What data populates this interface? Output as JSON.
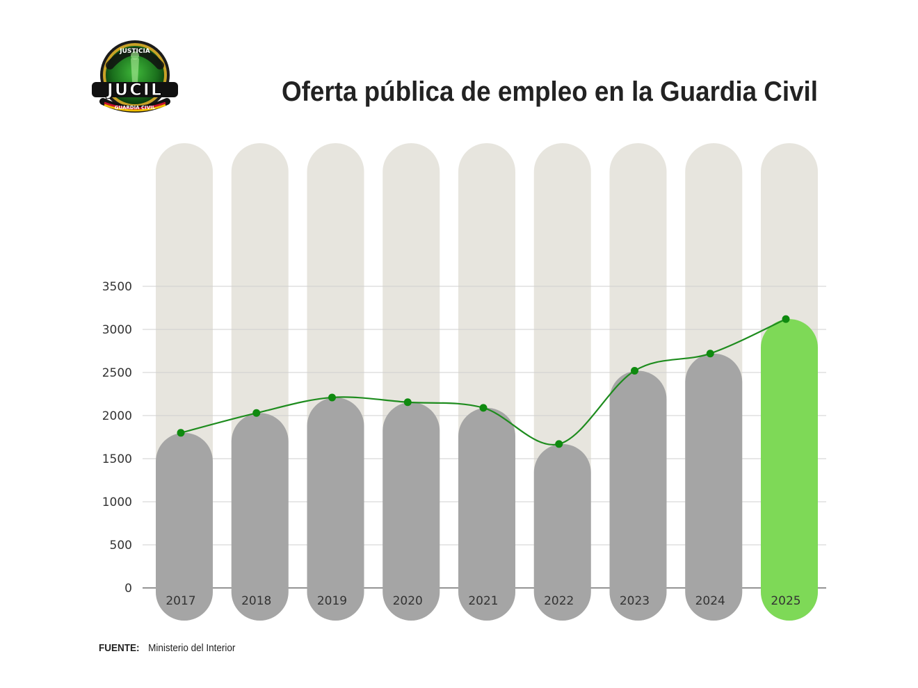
{
  "header": {
    "logo": {
      "top_text": "JUSTICIA",
      "main_text": "JUCIL",
      "bottom_text": "GUARDIA CIVIL"
    },
    "title": "Oferta pública de empleo en la Guardia Civil"
  },
  "footer": {
    "source_label": "FUENTE:",
    "source_value": "Ministerio del Interior"
  },
  "colors": {
    "background_pill": "#e7e5de",
    "bar": "#a5a5a5",
    "highlight_bar": "#7ed957",
    "line": "#1e8c1e",
    "point": "#0f8a0f",
    "grid": "#cfcfcf"
  },
  "chart_data": {
    "type": "bar",
    "title": "Oferta pública de empleo en la Guardia Civil",
    "xlabel": "",
    "ylabel": "",
    "categories": [
      "2017",
      "2018",
      "2019",
      "2020",
      "2021",
      "2022",
      "2023",
      "2024",
      "2025"
    ],
    "values": [
      1800,
      2030,
      2210,
      2155,
      2090,
      1670,
      2520,
      2720,
      3120
    ],
    "line_overlay": true,
    "highlight_category": "2025",
    "ylim": [
      0,
      3500
    ],
    "yticks": [
      0,
      500,
      1000,
      1500,
      2000,
      2500,
      3000,
      3500
    ],
    "grid": true,
    "legend": "none"
  }
}
